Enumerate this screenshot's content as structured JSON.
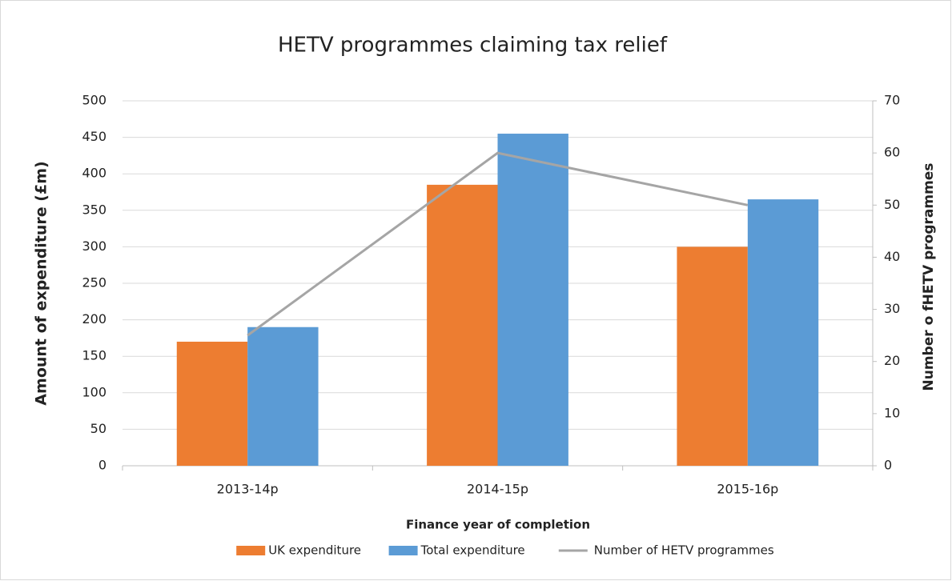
{
  "chart_data": {
    "type": "bar",
    "title": "HETV programmes claiming tax relief",
    "x_label": "Finance year of completion",
    "y_label": "Amount of expenditure (£m)",
    "y2_label": "Number o fHETV programmes",
    "categories": [
      "2013-14p",
      "2014-15p",
      "2015-16p"
    ],
    "series": [
      {
        "name": "UK expenditure",
        "type": "bar",
        "color": "#ed7d31",
        "values": [
          170,
          385,
          300
        ]
      },
      {
        "name": "Total expenditure",
        "type": "bar",
        "color": "#5b9bd5",
        "values": [
          190,
          455,
          365
        ]
      },
      {
        "name": "Number of HETV programmes",
        "type": "line",
        "axis": "y2",
        "color": "#a5a5a5",
        "values": [
          25,
          60,
          50
        ]
      }
    ],
    "ylim": [
      0,
      500
    ],
    "yticks": [
      0,
      50,
      100,
      150,
      200,
      250,
      300,
      350,
      400,
      450,
      500
    ],
    "y2lim": [
      0,
      70
    ],
    "y2ticks": [
      0,
      10,
      20,
      30,
      40,
      50,
      60,
      70
    ],
    "grid": true,
    "legend": "bottom"
  }
}
